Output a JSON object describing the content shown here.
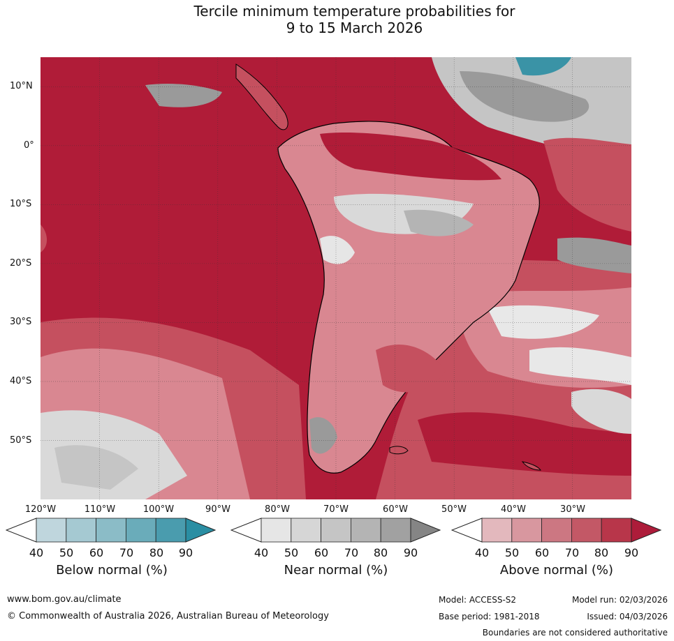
{
  "title": {
    "line1": "Tercile minimum temperature probabilities for",
    "line2": "9 to 15 March 2026"
  },
  "map": {
    "lat_labels": [
      "10°N",
      "0°",
      "10°S",
      "20°S",
      "30°S",
      "40°S",
      "50°S"
    ],
    "lon_labels": [
      "120°W",
      "110°W",
      "100°W",
      "90°W",
      "80°W",
      "70°W",
      "60°W",
      "50°W",
      "40°W",
      "30°W"
    ],
    "lon_range": [
      -120,
      -20
    ],
    "lat_range": [
      -60,
      15
    ]
  },
  "colorbars": [
    {
      "title": "Below normal (%)",
      "ticks": [
        "40",
        "50",
        "60",
        "70",
        "80",
        "90"
      ],
      "colors": [
        "#bfd6dd",
        "#a5c9d2",
        "#8bbcc7",
        "#6aacba",
        "#4a9cae",
        "#2a8ea3"
      ]
    },
    {
      "title": "Near normal (%)",
      "ticks": [
        "40",
        "50",
        "60",
        "70",
        "80",
        "90"
      ],
      "colors": [
        "#e6e6e6",
        "#d6d6d6",
        "#c5c5c5",
        "#b4b4b4",
        "#a1a1a1",
        "#858585"
      ]
    },
    {
      "title": "Above normal (%)",
      "ticks": [
        "40",
        "50",
        "60",
        "70",
        "80",
        "90"
      ],
      "colors": [
        "#e3b8bd",
        "#d8979f",
        "#cc7782",
        "#c35866",
        "#b8364a",
        "#ad1c3a"
      ]
    }
  ],
  "colors": {
    "above_strong": "#b01c38",
    "above_mid": "#c5505f",
    "above_light": "#d98791",
    "near": "#d9d9d9",
    "near_dark": "#9a9a9a",
    "below": "#3a93a6",
    "land_line": "#000000",
    "border": "#808080"
  },
  "footer": {
    "website": "www.bom.gov.au/climate",
    "copyright": "© Commonwealth of Australia 2026, Australian Bureau of Meteorology",
    "model": "Model: ACCESS-S2",
    "model_run": "Model run: 02/03/2026",
    "base_period": "Base period: 1981-2018",
    "issued": "Issued: 04/03/2026",
    "disclaimer": "Boundaries are not considered authoritative"
  }
}
